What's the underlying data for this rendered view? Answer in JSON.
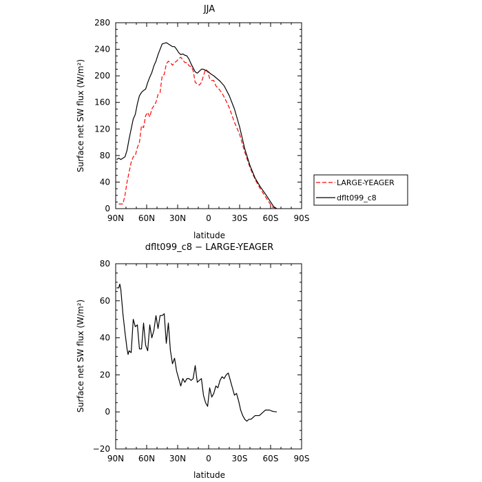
{
  "chart_data": [
    {
      "type": "line",
      "title": "JJA",
      "xlabel": "latitude",
      "ylabel": "Surface net SW flux (W/m²)",
      "xlim": [
        90,
        -90
      ],
      "ylim": [
        0,
        280
      ],
      "xticks": [
        90,
        60,
        30,
        0,
        -30,
        -60,
        -90
      ],
      "xtick_labels": [
        "90N",
        "60N",
        "30N",
        "0",
        "30S",
        "60S",
        "90S"
      ],
      "yticks": [
        0,
        40,
        80,
        120,
        160,
        200,
        240,
        280
      ],
      "ytick_labels": [
        "0",
        "40",
        "80",
        "120",
        "160",
        "200",
        "240",
        "280"
      ],
      "legend_position": "right",
      "series": [
        {
          "name": "LARGE-YEAGER",
          "color": "#ff0000",
          "dash": "dashed",
          "points": [
            [
              87,
              7
            ],
            [
              85,
              7
            ],
            [
              83,
              7
            ],
            [
              81,
              20
            ],
            [
              79,
              40
            ],
            [
              77,
              55
            ],
            [
              75,
              70
            ],
            [
              73,
              78
            ],
            [
              71,
              80
            ],
            [
              69,
              92
            ],
            [
              67,
              100
            ],
            [
              65,
              125
            ],
            [
              63,
              122
            ],
            [
              61,
              140
            ],
            [
              59,
              145
            ],
            [
              57,
              138
            ],
            [
              55,
              150
            ],
            [
              53,
              155
            ],
            [
              51,
              160
            ],
            [
              49,
              172
            ],
            [
              47,
              175
            ],
            [
              45,
              200
            ],
            [
              43,
              202
            ],
            [
              41,
              218
            ],
            [
              39,
              222
            ],
            [
              37,
              220
            ],
            [
              35,
              216
            ],
            [
              33,
              220
            ],
            [
              31,
              222
            ],
            [
              29,
              226
            ],
            [
              27,
              228
            ],
            [
              25,
              224
            ],
            [
              23,
              220
            ],
            [
              21,
              220
            ],
            [
              19,
              215
            ],
            [
              17,
              214
            ],
            [
              15,
              208
            ],
            [
              13,
              190
            ],
            [
              11,
              188
            ],
            [
              9,
              186
            ],
            [
              7,
              190
            ],
            [
              5,
              200
            ],
            [
              3,
              210
            ],
            [
              1,
              207
            ],
            [
              -1,
              196
            ],
            [
              -3,
              193
            ],
            [
              -5,
              193
            ],
            [
              -7,
              185
            ],
            [
              -10,
              180
            ],
            [
              -13,
              174
            ],
            [
              -16,
              165
            ],
            [
              -20,
              152
            ],
            [
              -25,
              130
            ],
            [
              -30,
              112
            ],
            [
              -35,
              85
            ],
            [
              -40,
              62
            ],
            [
              -45,
              44
            ],
            [
              -50,
              30
            ],
            [
              -55,
              18
            ],
            [
              -60,
              6
            ],
            [
              -62,
              2
            ],
            [
              -65,
              1
            ]
          ]
        },
        {
          "name": "dflt099_c8",
          "color": "#000000",
          "dash": "solid",
          "points": [
            [
              89,
              74
            ],
            [
              87,
              76
            ],
            [
              85,
              74
            ],
            [
              83,
              76
            ],
            [
              81,
              78
            ],
            [
              79,
              88
            ],
            [
              77,
              105
            ],
            [
              75,
              120
            ],
            [
              73,
              135
            ],
            [
              71,
              142
            ],
            [
              69,
              158
            ],
            [
              67,
              170
            ],
            [
              65,
              175
            ],
            [
              63,
              178
            ],
            [
              61,
              180
            ],
            [
              59,
              190
            ],
            [
              57,
              198
            ],
            [
              55,
              205
            ],
            [
              53,
              215
            ],
            [
              51,
              222
            ],
            [
              49,
              232
            ],
            [
              47,
              240
            ],
            [
              45,
              248
            ],
            [
              43,
              249
            ],
            [
              41,
              250
            ],
            [
              39,
              248
            ],
            [
              37,
              246
            ],
            [
              35,
              244
            ],
            [
              33,
              244
            ],
            [
              31,
              240
            ],
            [
              29,
              235
            ],
            [
              27,
              232
            ],
            [
              25,
              233
            ],
            [
              23,
              231
            ],
            [
              21,
              230
            ],
            [
              19,
              225
            ],
            [
              17,
              218
            ],
            [
              15,
              212
            ],
            [
              13,
              206
            ],
            [
              11,
              204
            ],
            [
              9,
              207
            ],
            [
              7,
              210
            ],
            [
              5,
              210
            ],
            [
              3,
              208
            ],
            [
              1,
              207
            ],
            [
              -2,
              203
            ],
            [
              -5,
              200
            ],
            [
              -8,
              196
            ],
            [
              -11,
              192
            ],
            [
              -15,
              185
            ],
            [
              -20,
              170
            ],
            [
              -25,
              150
            ],
            [
              -30,
              123
            ],
            [
              -35,
              90
            ],
            [
              -40,
              65
            ],
            [
              -45,
              46
            ],
            [
              -50,
              33
            ],
            [
              -55,
              22
            ],
            [
              -60,
              10
            ],
            [
              -63,
              3
            ],
            [
              -66,
              0
            ]
          ]
        }
      ]
    },
    {
      "type": "line",
      "title": "dflt099_c8 − LARGE-YEAGER",
      "xlabel": "latitude",
      "ylabel": "Surface net SW flux (W/m²)",
      "xlim": [
        90,
        -90
      ],
      "ylim": [
        -20,
        80
      ],
      "xticks": [
        90,
        60,
        30,
        0,
        -30,
        -60,
        -90
      ],
      "xtick_labels": [
        "90N",
        "60N",
        "30N",
        "0",
        "30S",
        "60S",
        "90S"
      ],
      "yticks": [
        -20,
        0,
        20,
        40,
        60,
        80
      ],
      "ytick_labels": [
        "−20",
        "0",
        "20",
        "40",
        "60",
        "80"
      ],
      "series": [
        {
          "color": "#000000",
          "dash": "solid",
          "points": [
            [
              89,
              67
            ],
            [
              87,
              67
            ],
            [
              86,
              69
            ],
            [
              85,
              66
            ],
            [
              83,
              53
            ],
            [
              81,
              43
            ],
            [
              79,
              34
            ],
            [
              78,
              31
            ],
            [
              77,
              33
            ],
            [
              75,
              32
            ],
            [
              73,
              50
            ],
            [
              71,
              46
            ],
            [
              69,
              47
            ],
            [
              67,
              34
            ],
            [
              65,
              34
            ],
            [
              63,
              48
            ],
            [
              61,
              36
            ],
            [
              59,
              33
            ],
            [
              57,
              47
            ],
            [
              55,
              40
            ],
            [
              53,
              44
            ],
            [
              51,
              52
            ],
            [
              49,
              45
            ],
            [
              47,
              52
            ],
            [
              45,
              52
            ],
            [
              43,
              53
            ],
            [
              41,
              37
            ],
            [
              39,
              48
            ],
            [
              37,
              33
            ],
            [
              35,
              26
            ],
            [
              33,
              29
            ],
            [
              31,
              22
            ],
            [
              29,
              18
            ],
            [
              27,
              14
            ],
            [
              25,
              18
            ],
            [
              23,
              16
            ],
            [
              21,
              18
            ],
            [
              19,
              18
            ],
            [
              17,
              17
            ],
            [
              15,
              18
            ],
            [
              13,
              25
            ],
            [
              11,
              16
            ],
            [
              9,
              17
            ],
            [
              7,
              18
            ],
            [
              5,
              9
            ],
            [
              3,
              5
            ],
            [
              1,
              3
            ],
            [
              -1,
              13
            ],
            [
              -3,
              8
            ],
            [
              -5,
              10
            ],
            [
              -7,
              14
            ],
            [
              -9,
              13
            ],
            [
              -11,
              17
            ],
            [
              -13,
              19
            ],
            [
              -15,
              18
            ],
            [
              -17,
              20
            ],
            [
              -19,
              21
            ],
            [
              -21,
              17
            ],
            [
              -23,
              13
            ],
            [
              -25,
              9
            ],
            [
              -27,
              10
            ],
            [
              -29,
              6
            ],
            [
              -31,
              1
            ],
            [
              -33,
              -2
            ],
            [
              -35,
              -4
            ],
            [
              -37,
              -5
            ],
            [
              -39,
              -4
            ],
            [
              -41,
              -4
            ],
            [
              -43,
              -3
            ],
            [
              -45,
              -2
            ],
            [
              -47,
              -2
            ],
            [
              -49,
              -2
            ],
            [
              -51,
              -1
            ],
            [
              -53,
              0
            ],
            [
              -55,
              1
            ],
            [
              -57,
              1
            ],
            [
              -59,
              1
            ],
            [
              -61,
              0.5
            ],
            [
              -63,
              0.2
            ],
            [
              -66,
              0
            ]
          ]
        }
      ]
    }
  ]
}
